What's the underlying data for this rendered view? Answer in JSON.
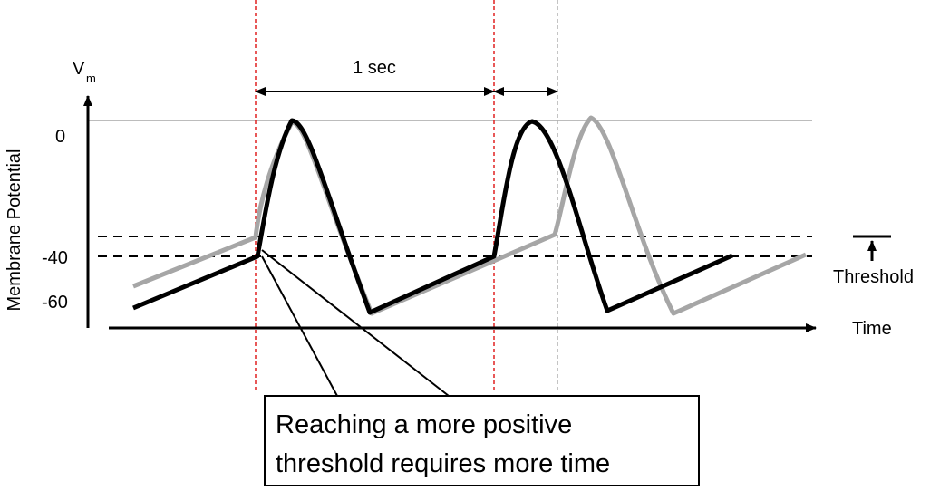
{
  "axis": {
    "y_symbol": "V",
    "y_symbol_sub": "m",
    "y_title": "Membrane Potential",
    "x_title": "Time",
    "y_ticks": [
      "0",
      "-40",
      "-60"
    ]
  },
  "interval_label": "1 sec",
  "threshold_label": "Threshold",
  "callout": {
    "line1": "Reaching a more positive",
    "line2": "threshold requires more time"
  },
  "colors": {
    "black_trace": "#000000",
    "gray_trace": "#a6a6a6",
    "event_marker": "#e02020",
    "delayed_marker": "#b0b0b0",
    "zero_line": "#a6a6a6"
  }
}
